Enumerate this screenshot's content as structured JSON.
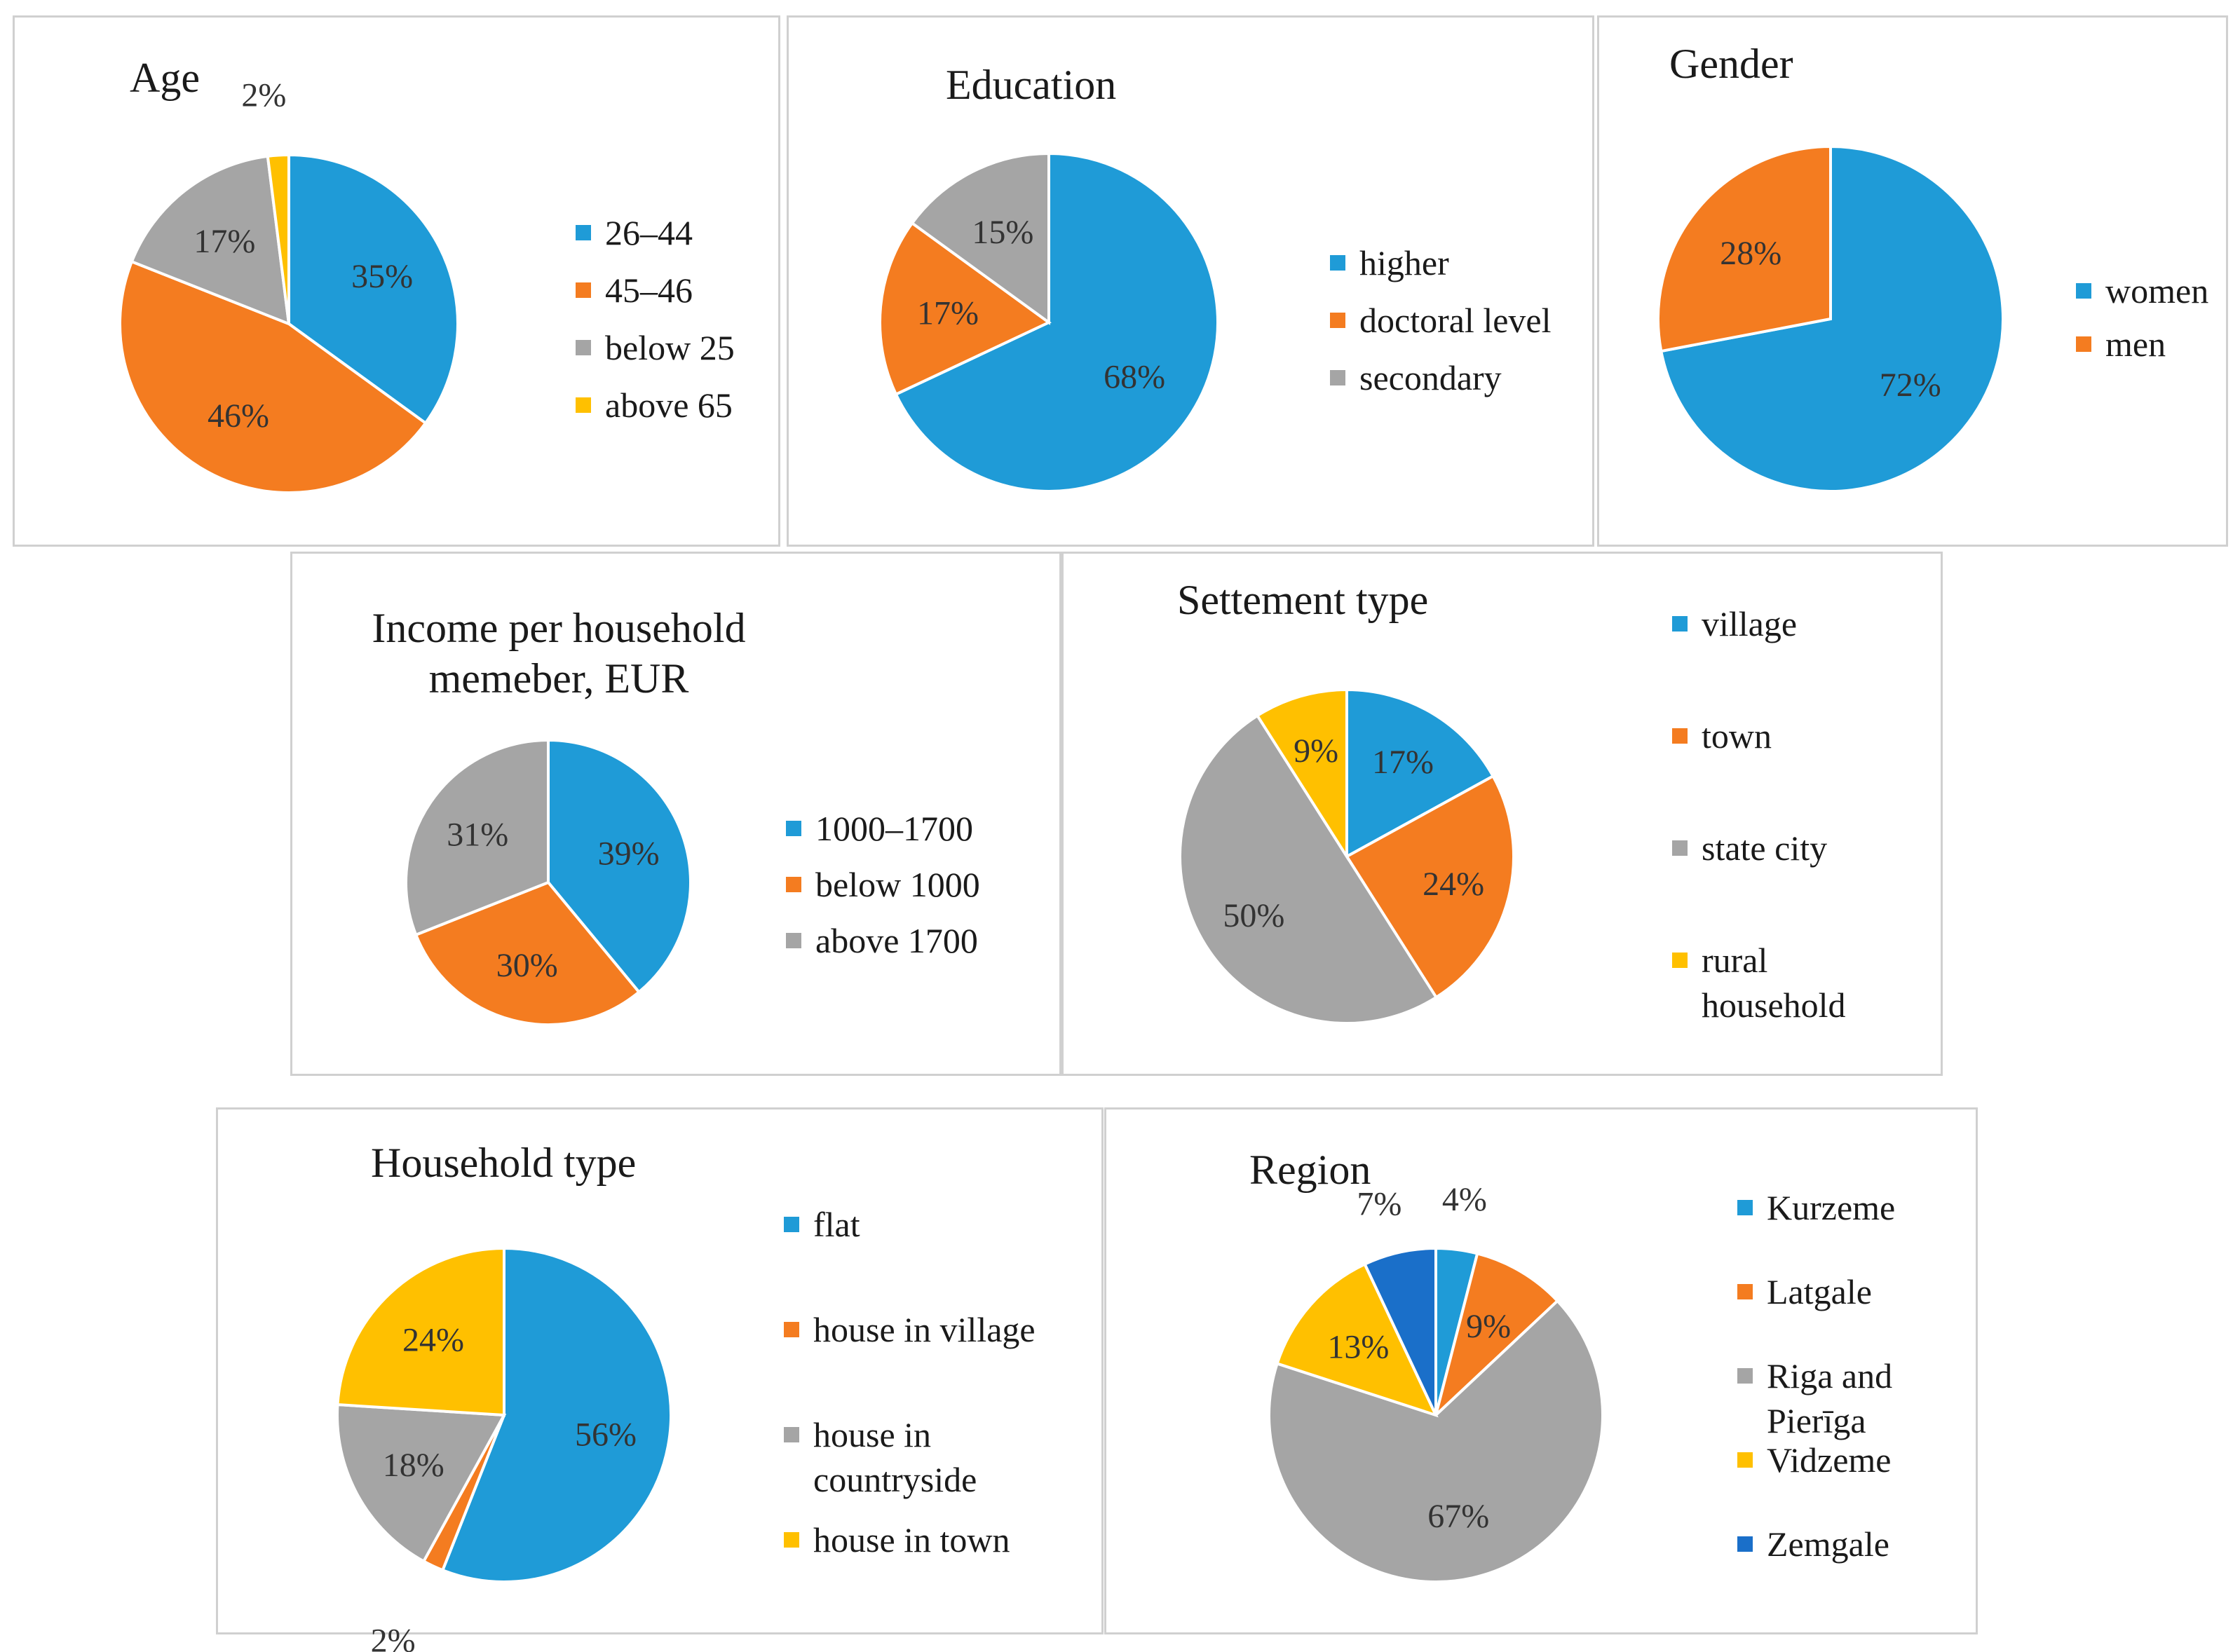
{
  "palette": {
    "blue": "#1f9bd7",
    "orange": "#f47c20",
    "gray": "#a5a5a5",
    "yellow": "#ffc000",
    "darkblue": "#1a6fc9"
  },
  "chart_data": [
    {
      "id": "age",
      "type": "pie",
      "title": "Age",
      "slices": [
        {
          "label": "26–44",
          "value": 35,
          "text": "35%",
          "color": "#1f9bd7"
        },
        {
          "label": "45–46",
          "value": 46,
          "text": "46%",
          "color": "#f47c20"
        },
        {
          "label": "below 25",
          "value": 17,
          "text": "17%",
          "color": "#a5a5a5"
        },
        {
          "label": "above  65",
          "value": 2,
          "text": "2%",
          "color": "#ffc000"
        }
      ]
    },
    {
      "id": "education",
      "type": "pie",
      "title": "Education",
      "slices": [
        {
          "label": "higher",
          "value": 68,
          "text": "68%",
          "color": "#1f9bd7"
        },
        {
          "label": "doctoral level",
          "value": 17,
          "text": "17%",
          "color": "#f47c20"
        },
        {
          "label": "secondary",
          "value": 15,
          "text": "15%",
          "color": "#a5a5a5"
        }
      ]
    },
    {
      "id": "gender",
      "type": "pie",
      "title": "Gender",
      "slices": [
        {
          "label": "women",
          "value": 72,
          "text": "72%",
          "color": "#1f9bd7"
        },
        {
          "label": "men",
          "value": 28,
          "text": "28%",
          "color": "#f47c20"
        }
      ]
    },
    {
      "id": "income",
      "type": "pie",
      "title": "Income per household memeber, EUR",
      "slices": [
        {
          "label": "1000–1700",
          "value": 39,
          "text": "39%",
          "color": "#1f9bd7"
        },
        {
          "label": "below 1000",
          "value": 30,
          "text": "30%",
          "color": "#f47c20"
        },
        {
          "label": "above 1700",
          "value": 31,
          "text": "31%",
          "color": "#a5a5a5"
        }
      ]
    },
    {
      "id": "settlement",
      "type": "pie",
      "title": "Settement type",
      "slices": [
        {
          "label": "village",
          "value": 17,
          "text": "17%",
          "color": "#1f9bd7"
        },
        {
          "label": "town",
          "value": 24,
          "text": "24%",
          "color": "#f47c20"
        },
        {
          "label": "state city",
          "value": 50,
          "text": "50%",
          "color": "#a5a5a5"
        },
        {
          "label": "rural household",
          "value": 9,
          "text": "9%",
          "color": "#ffc000"
        }
      ]
    },
    {
      "id": "household",
      "type": "pie",
      "title": "Household type",
      "slices": [
        {
          "label": "flat",
          "value": 56,
          "text": "56%",
          "color": "#1f9bd7"
        },
        {
          "label": "house in village",
          "value": 2,
          "text": "2%",
          "color": "#f47c20"
        },
        {
          "label": "house in countryside",
          "value": 18,
          "text": "18%",
          "color": "#a5a5a5"
        },
        {
          "label": "house in town",
          "value": 24,
          "text": "24%",
          "color": "#ffc000"
        }
      ]
    },
    {
      "id": "region",
      "type": "pie",
      "title": "Region",
      "slices": [
        {
          "label": "Kurzeme",
          "value": 4,
          "text": "4%",
          "color": "#1f9bd7"
        },
        {
          "label": "Latgale",
          "value": 9,
          "text": "9%",
          "color": "#f47c20"
        },
        {
          "label": "Riga and Pierīga",
          "value": 67,
          "text": "67%",
          "color": "#a5a5a5"
        },
        {
          "label": "Vidzeme",
          "value": 13,
          "text": "13%",
          "color": "#ffc000"
        },
        {
          "label": "Zemgale",
          "value": 7,
          "text": "7%",
          "color": "#1a6fc9"
        }
      ]
    }
  ]
}
